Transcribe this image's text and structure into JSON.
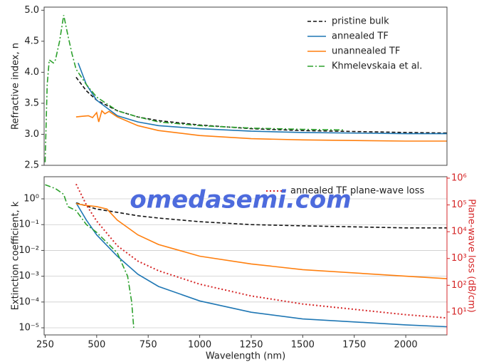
{
  "watermark": "omedasemi.com",
  "chart_data": [
    {
      "type": "line",
      "ylabel": "Refractive index, n",
      "xlim": [
        245,
        2200
      ],
      "ylim": [
        2.5,
        5.05
      ],
      "yticks": [
        {
          "value": 2.5,
          "label": "2.5"
        },
        {
          "value": 3,
          "label": "3.0"
        },
        {
          "value": 3.5,
          "label": "3.5"
        },
        {
          "value": 4,
          "label": "4.0"
        },
        {
          "value": 4.5,
          "label": "4.5"
        },
        {
          "value": 5,
          "label": "5.0"
        }
      ],
      "legend": "upper right",
      "series": [
        {
          "name": "pristine bulk",
          "color": "#111111",
          "linestyle": "dashed",
          "x": [
            400,
            450,
            500,
            600,
            700,
            800,
            1000,
            1250,
            1500,
            2000,
            2200
          ],
          "values": [
            3.92,
            3.7,
            3.55,
            3.38,
            3.28,
            3.22,
            3.15,
            3.09,
            3.06,
            3.03,
            3.02
          ]
        },
        {
          "name": "annealed TF",
          "color": "#1f77b4",
          "linestyle": "solid",
          "x": [
            410,
            450,
            500,
            600,
            700,
            800,
            1000,
            1250,
            1500,
            2000,
            2200
          ],
          "values": [
            4.15,
            3.8,
            3.55,
            3.3,
            3.2,
            3.14,
            3.09,
            3.05,
            3.03,
            3.01,
            3.01
          ]
        },
        {
          "name": "unannealed TF",
          "color": "#ff7f0e",
          "linestyle": "solid",
          "x": [
            400,
            430,
            460,
            480,
            500,
            510,
            525,
            540,
            560,
            600,
            700,
            800,
            1000,
            1250,
            1500,
            2000,
            2200
          ],
          "values": [
            3.28,
            3.29,
            3.3,
            3.27,
            3.35,
            3.2,
            3.38,
            3.33,
            3.37,
            3.28,
            3.14,
            3.06,
            2.98,
            2.93,
            2.91,
            2.89,
            2.89
          ]
        },
        {
          "name": "Khmelevskaia et al.",
          "color": "#2ca02c",
          "linestyle": "dashdot",
          "x": [
            250,
            260,
            270,
            290,
            300,
            320,
            340,
            360,
            380,
            400,
            450,
            500,
            600,
            700,
            800,
            1000,
            1250,
            1500,
            1700
          ],
          "values": [
            2.55,
            3.8,
            4.2,
            4.15,
            4.2,
            4.5,
            4.92,
            4.6,
            4.3,
            4.05,
            3.8,
            3.6,
            3.38,
            3.28,
            3.2,
            3.14,
            3.1,
            3.08,
            3.07
          ]
        }
      ]
    },
    {
      "type": "line",
      "xlabel": "Wavelength (nm)",
      "ylabel": "Extinction coefficient, k",
      "y2label": "Plane-wave loss (dB/cm)",
      "xlim": [
        245,
        2200
      ],
      "ylim": [
        5.3e-06,
        7.2
      ],
      "y2lim": [
        1.4,
        1130000
      ],
      "log_y": true,
      "log_y2": true,
      "grid": true,
      "y2color": "#d62728",
      "xticks": [
        250,
        500,
        750,
        1000,
        1250,
        1500,
        1750,
        2000
      ],
      "yticks": [
        {
          "value": 1e-05,
          "label": "10⁻⁵"
        },
        {
          "value": 0.0001,
          "label": "10⁻⁴"
        },
        {
          "value": 0.001,
          "label": "10⁻³"
        },
        {
          "value": 0.01,
          "label": "10⁻²"
        },
        {
          "value": 0.1,
          "label": "10⁻¹"
        },
        {
          "value": 1,
          "label": "10⁰"
        }
      ],
      "y2ticks": [
        {
          "value": 10,
          "label": "10¹"
        },
        {
          "value": 100,
          "label": "10²"
        },
        {
          "value": 1000,
          "label": "10³"
        },
        {
          "value": 10000,
          "label": "10⁴"
        },
        {
          "value": 100000,
          "label": "10⁵"
        },
        {
          "value": 1000000,
          "label": "10⁶"
        }
      ],
      "legend": "upper center",
      "series": [
        {
          "color": "#111111",
          "linestyle": "dashed",
          "x": [
            400,
            500,
            600,
            700,
            800,
            1000,
            1250,
            1500,
            2000,
            2200
          ],
          "values": [
            0.7,
            0.4,
            0.3,
            0.22,
            0.18,
            0.13,
            0.1,
            0.09,
            0.075,
            0.075
          ]
        },
        {
          "color": "#1f77b4",
          "linestyle": "solid",
          "x": [
            400,
            450,
            500,
            600,
            700,
            800,
            1000,
            1250,
            1500,
            2000,
            2200
          ],
          "values": [
            0.7,
            0.15,
            0.04,
            0.006,
            0.0012,
            0.0004,
            0.00011,
            4e-05,
            2.2e-05,
            1.3e-05,
            1.1e-05
          ]
        },
        {
          "color": "#ff7f0e",
          "linestyle": "solid",
          "x": [
            400,
            450,
            500,
            550,
            600,
            700,
            800,
            1000,
            1250,
            1500,
            2000,
            2200
          ],
          "values": [
            0.65,
            0.55,
            0.5,
            0.4,
            0.15,
            0.04,
            0.017,
            0.006,
            0.003,
            0.0018,
            0.001,
            0.0008
          ]
        },
        {
          "color": "#2ca02c",
          "linestyle": "dashdot",
          "x": [
            250,
            300,
            340,
            360,
            400,
            450,
            500,
            550,
            600,
            650,
            670,
            680
          ],
          "values": [
            3.5,
            2.5,
            1.5,
            0.5,
            0.35,
            0.1,
            0.05,
            0.02,
            0.008,
            0.001,
            0.0001,
            1e-05
          ]
        },
        {
          "name": "annealed TF plane-wave loss",
          "color": "#d62728",
          "linestyle": "dotted",
          "axis": "y2",
          "x": [
            400,
            450,
            500,
            600,
            700,
            800,
            1000,
            1250,
            1500,
            2000,
            2200
          ],
          "values": [
            600000,
            100000,
            25000,
            3000,
            800,
            350,
            110,
            40,
            20,
            8,
            6
          ]
        }
      ]
    }
  ]
}
